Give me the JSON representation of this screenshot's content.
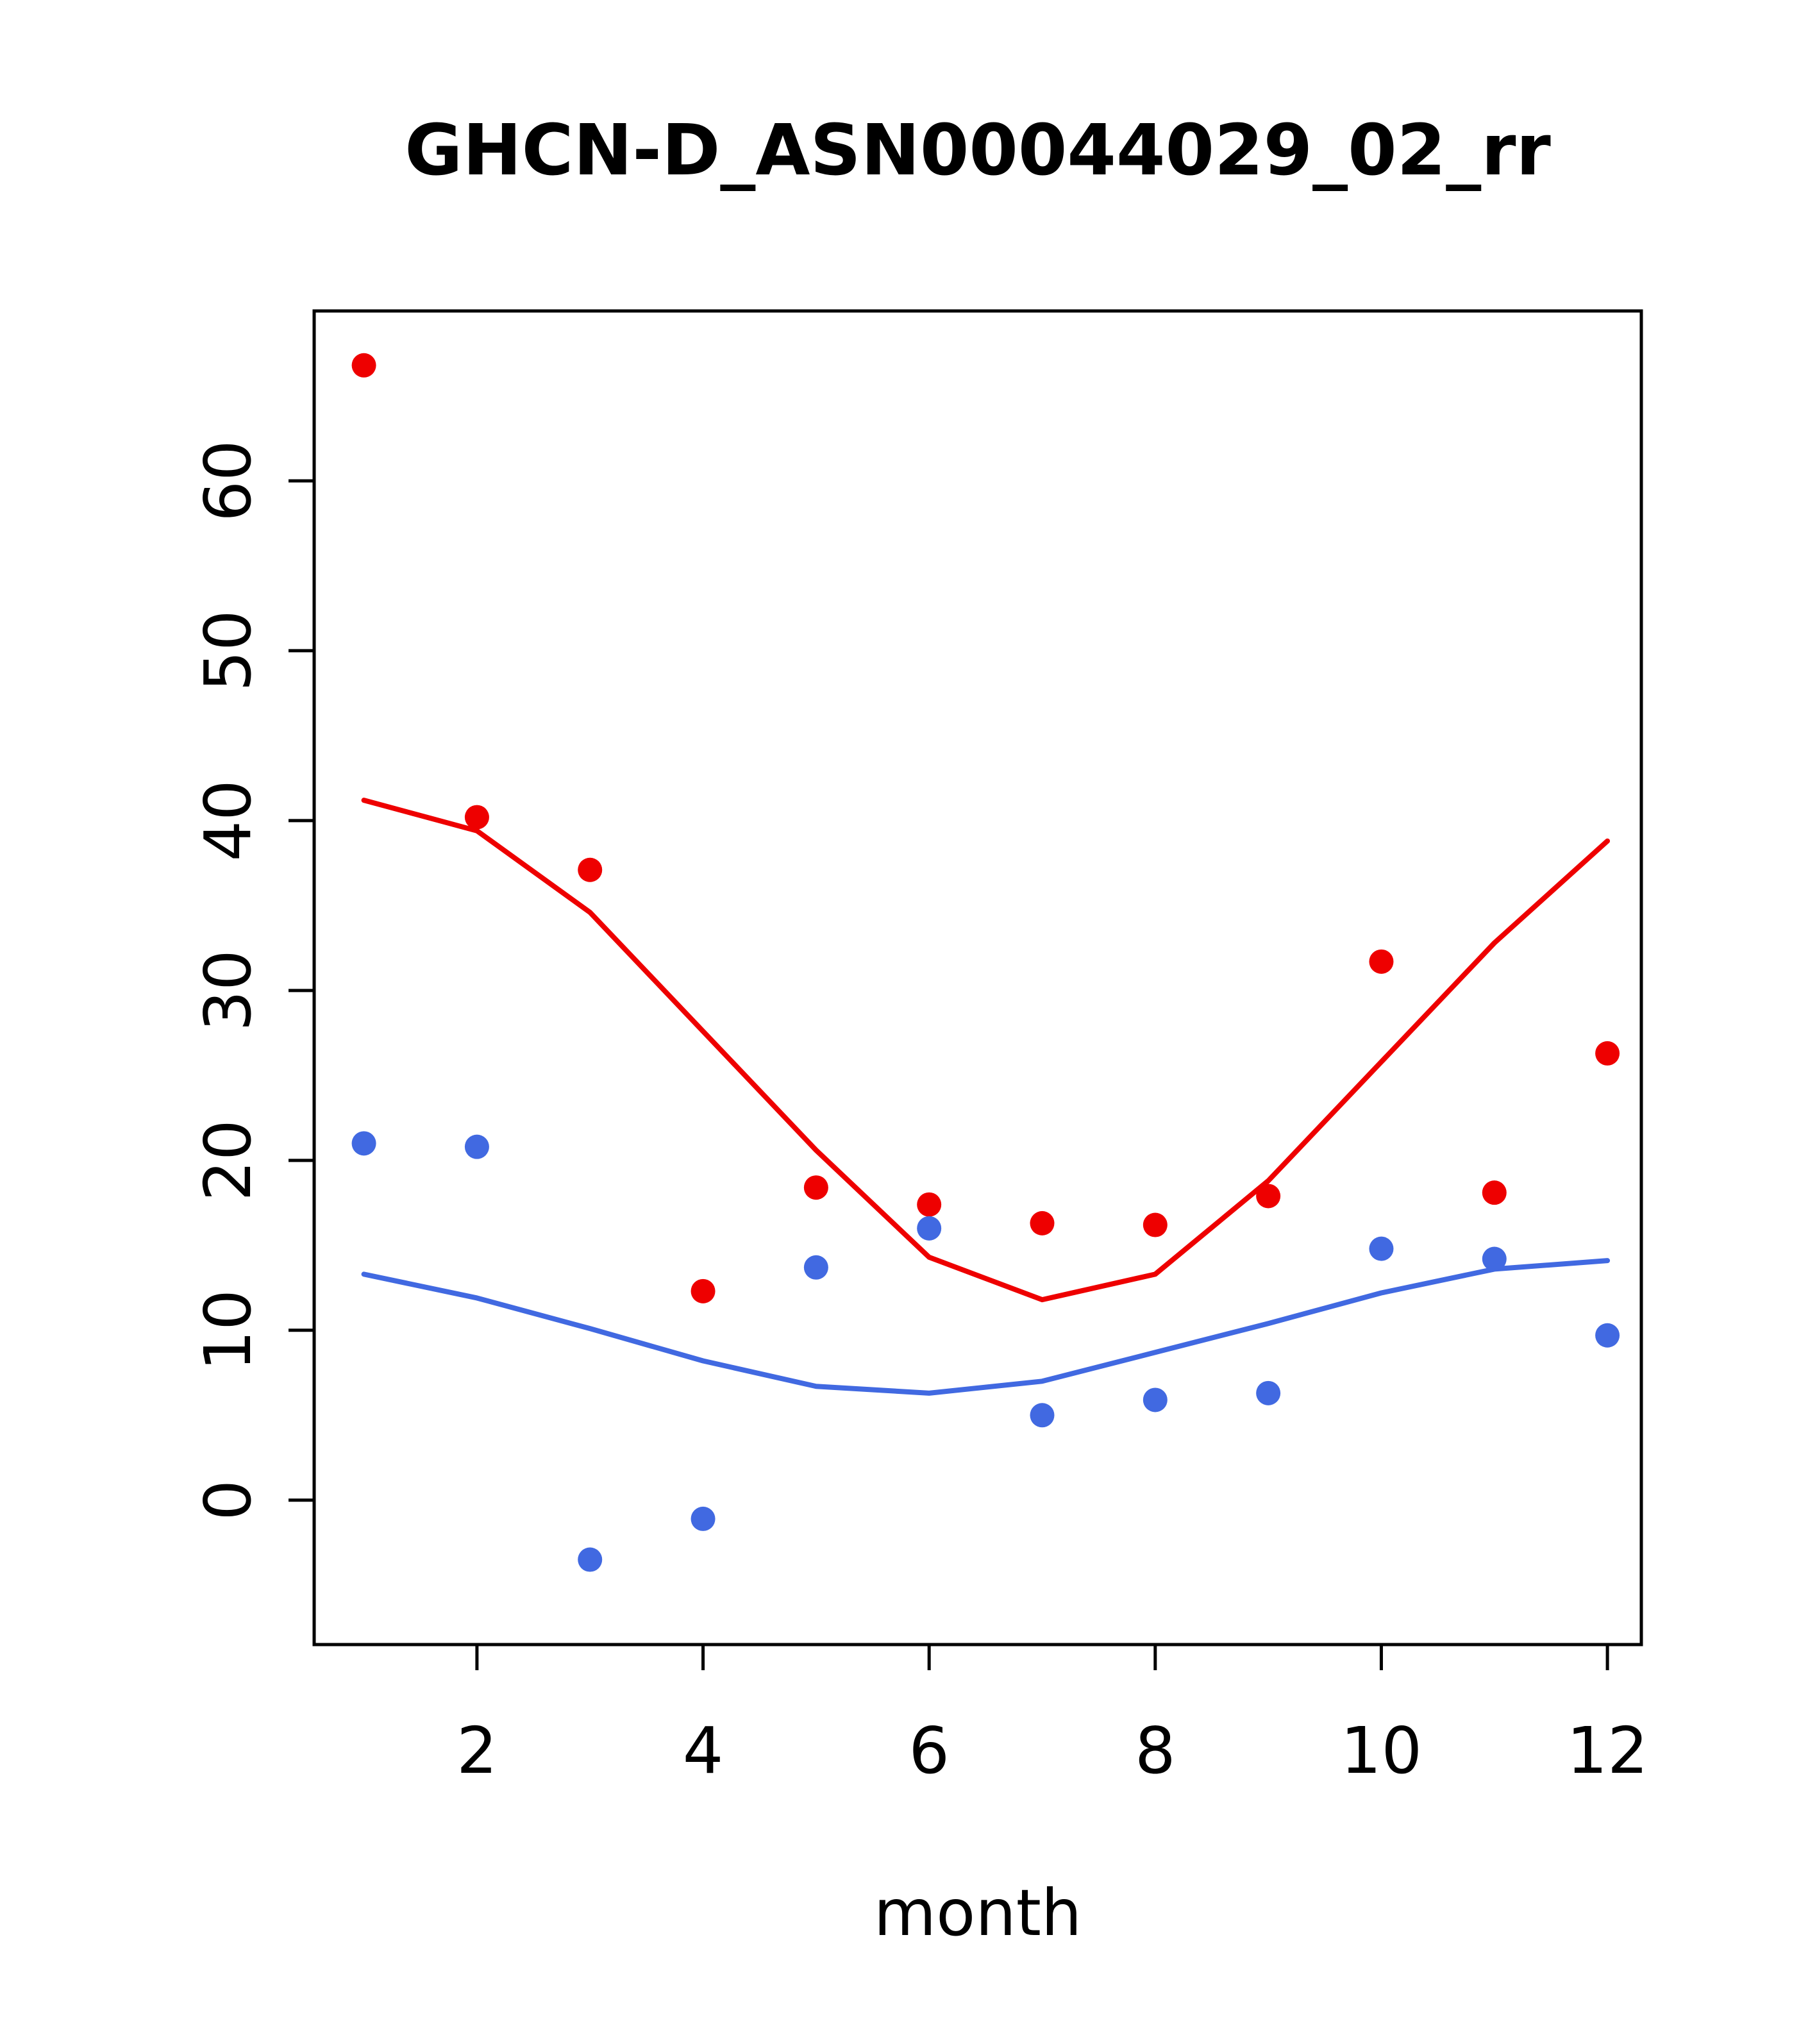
{
  "chart_data": {
    "type": "scatter",
    "title": "GHCN-D_ASN00044029_02_rr",
    "xlabel": "month",
    "ylabel": "",
    "x": [
      1,
      2,
      3,
      4,
      5,
      6,
      7,
      8,
      9,
      10,
      11,
      12
    ],
    "xticks": [
      2,
      4,
      6,
      8,
      10,
      12
    ],
    "yticks": [
      0,
      10,
      20,
      30,
      40,
      50,
      60
    ],
    "xlim": [
      0.56,
      12.3
    ],
    "ylim": [
      -8.5,
      70
    ],
    "grid": false,
    "legend": "none",
    "colors": {
      "red": "#EE0000",
      "blue": "#4169E1"
    },
    "series": [
      {
        "name": "red-smooth-line",
        "style": "line",
        "color": "#EE0000",
        "values": [
          41.2,
          39.4,
          34.6,
          27.6,
          20.6,
          14.3,
          11.8,
          13.3,
          18.8,
          25.8,
          32.8,
          38.8
        ]
      },
      {
        "name": "blue-smooth-line",
        "style": "line",
        "color": "#4169E1",
        "values": [
          13.3,
          11.9,
          10.1,
          8.2,
          6.7,
          6.3,
          7.0,
          8.7,
          10.4,
          12.2,
          13.6,
          14.1
        ]
      },
      {
        "name": "red-points",
        "style": "points",
        "color": "#EE0000",
        "values": [
          66.8,
          40.2,
          37.1,
          12.3,
          18.4,
          17.4,
          16.3,
          16.2,
          17.9,
          31.7,
          18.1,
          26.3
        ]
      },
      {
        "name": "blue-points",
        "style": "points",
        "color": "#4169E1",
        "values": [
          21.0,
          20.8,
          -3.5,
          -1.1,
          13.7,
          16.0,
          5.0,
          5.9,
          6.3,
          14.8,
          14.2,
          9.7
        ]
      }
    ]
  }
}
